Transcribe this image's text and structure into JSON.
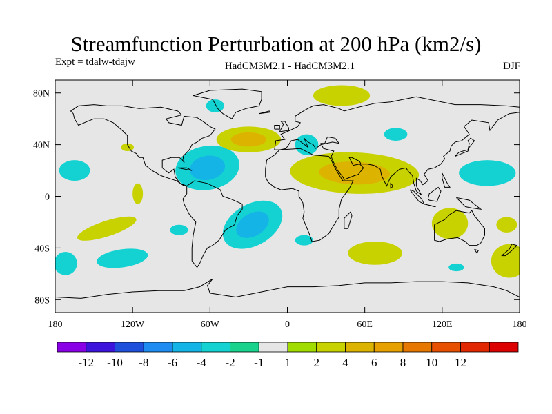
{
  "title": "Streamfunction Perturbation at 200 hPa (km2/s)",
  "subtitle_left": "Expt = tdalw-tdajw",
  "subtitle_center": "HadCM3M2.1 - HadCM3M2.1",
  "subtitle_right": "DJF",
  "map": {
    "lon_range": [
      -180,
      180
    ],
    "lat_range": [
      -90,
      90
    ],
    "ocean_color": "#e6e6e6",
    "coast_color": "#000000"
  },
  "axes": {
    "y_ticks": [
      {
        "lat": 80,
        "label": "80N"
      },
      {
        "lat": 40,
        "label": "40N"
      },
      {
        "lat": 0,
        "label": "0"
      },
      {
        "lat": -40,
        "label": "40S"
      },
      {
        "lat": -80,
        "label": "80S"
      }
    ],
    "x_ticks": [
      {
        "lon": -180,
        "label": "180"
      },
      {
        "lon": -120,
        "label": "120W"
      },
      {
        "lon": -60,
        "label": "60W"
      },
      {
        "lon": 0,
        "label": "0"
      },
      {
        "lon": 60,
        "label": "60E"
      },
      {
        "lon": 120,
        "label": "120E"
      },
      {
        "lon": 180,
        "label": "180"
      }
    ]
  },
  "chart_data": {
    "type": "heatmap",
    "title": "Streamfunction Perturbation at 200 hPa (km2/s)",
    "units": "km2/s",
    "season": "DJF",
    "colorbar": {
      "colors": [
        "#8a00e6",
        "#3c14dc",
        "#1e50dc",
        "#1e8cf0",
        "#14b4e6",
        "#14d2d2",
        "#19d28c",
        "#e6e6e6",
        "#a0dc00",
        "#c8d200",
        "#dcb400",
        "#e6a000",
        "#e67800",
        "#e65000",
        "#e12800",
        "#dc0000"
      ],
      "labels": [
        "-12",
        "-10",
        "-8",
        "-6",
        "-4",
        "-2",
        "-1",
        "1",
        "2",
        "4",
        "6",
        "8",
        "10",
        "12"
      ]
    },
    "anomalies": [
      {
        "lon": -165,
        "lat": 20,
        "rx": 12,
        "ry": 8,
        "levels": [
          -2
        ]
      },
      {
        "lon": -172,
        "lat": -52,
        "rx": 9,
        "ry": 9,
        "levels": [
          -2
        ]
      },
      {
        "lon": -140,
        "lat": -25,
        "rx": 24,
        "ry": 6,
        "rot": -18,
        "levels": [
          2
        ]
      },
      {
        "lon": -128,
        "lat": -48,
        "rx": 20,
        "ry": 7,
        "rot": -8,
        "levels": [
          -2
        ]
      },
      {
        "lon": -116,
        "lat": 2,
        "rx": 4,
        "ry": 8,
        "levels": [
          2
        ]
      },
      {
        "lon": -124,
        "lat": 38,
        "rx": 5,
        "ry": 3,
        "levels": [
          2
        ]
      },
      {
        "lon": -84,
        "lat": -26,
        "rx": 7,
        "ry": 4,
        "levels": [
          -2
        ]
      },
      {
        "lon": -56,
        "lat": 70,
        "rx": 7,
        "ry": 5,
        "levels": [
          -2
        ]
      },
      {
        "lon": -62,
        "lat": 22,
        "rx": 25,
        "ry": 17,
        "rot": -10,
        "levels": [
          -2,
          -4
        ]
      },
      {
        "lon": -30,
        "lat": 44,
        "rx": 25,
        "ry": 10,
        "levels": [
          2,
          4
        ]
      },
      {
        "lon": -27,
        "lat": -22,
        "rx": 25,
        "ry": 16,
        "rot": -30,
        "levels": [
          -2,
          -4
        ]
      },
      {
        "lon": 13,
        "lat": -34,
        "rx": 7,
        "ry": 4,
        "levels": [
          -2
        ]
      },
      {
        "lon": 15,
        "lat": 40,
        "rx": 9,
        "ry": 8,
        "levels": [
          -2
        ]
      },
      {
        "lon": 42,
        "lat": 78,
        "rx": 22,
        "ry": 8,
        "levels": [
          2
        ]
      },
      {
        "lon": 52,
        "lat": 18,
        "rx": 50,
        "ry": 16,
        "rot": 2,
        "levels": [
          2,
          4
        ]
      },
      {
        "lon": 84,
        "lat": 48,
        "rx": 9,
        "ry": 5,
        "levels": [
          -2
        ]
      },
      {
        "lon": 155,
        "lat": 18,
        "rx": 22,
        "ry": 10,
        "levels": [
          -2
        ]
      },
      {
        "lon": 126,
        "lat": -21,
        "rx": 14,
        "ry": 12,
        "levels": [
          2
        ]
      },
      {
        "lon": 170,
        "lat": -22,
        "rx": 8,
        "ry": 6,
        "levels": [
          2
        ]
      },
      {
        "lon": 172,
        "lat": -50,
        "rx": 14,
        "ry": 13,
        "levels": [
          2
        ]
      },
      {
        "lon": 68,
        "lat": -44,
        "rx": 21,
        "ry": 9,
        "levels": [
          2
        ]
      },
      {
        "lon": 131,
        "lat": -55,
        "rx": 6,
        "ry": 3,
        "levels": [
          -2
        ]
      }
    ]
  }
}
